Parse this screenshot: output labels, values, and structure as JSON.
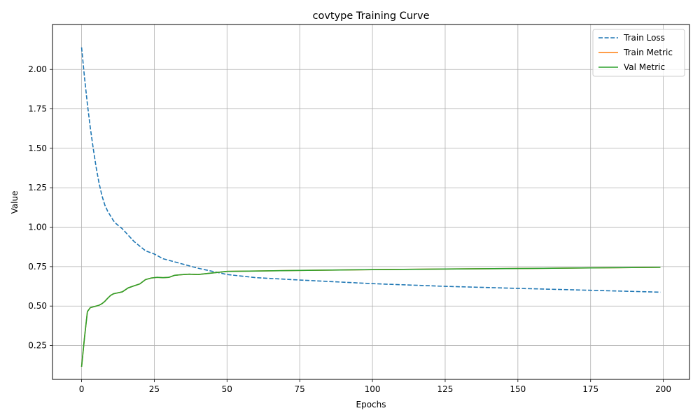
{
  "chart_data": {
    "type": "line",
    "title": "covtype Training Curve",
    "xlabel": "Epochs",
    "ylabel": "Value",
    "xlim": [
      -10,
      209
    ],
    "ylim": [
      0.035,
      2.285
    ],
    "xticks": [
      0,
      25,
      50,
      75,
      100,
      125,
      150,
      175,
      200
    ],
    "yticks": [
      0.25,
      0.5,
      0.75,
      1.0,
      1.25,
      1.5,
      1.75,
      2.0
    ],
    "ytick_labels": [
      "0.25",
      "0.50",
      "0.75",
      "1.00",
      "1.25",
      "1.50",
      "1.75",
      "2.00"
    ],
    "grid": true,
    "legend_position": "top-right",
    "series": [
      {
        "name": "Train Loss",
        "color": "#1f77b4",
        "style": "dashed",
        "x": [
          0,
          1,
          2,
          3,
          4,
          5,
          6,
          7,
          8,
          9,
          10,
          11,
          12,
          14,
          16,
          18,
          20,
          22,
          25,
          28,
          32,
          36,
          40,
          45,
          50,
          60,
          75,
          100,
          125,
          150,
          175,
          199
        ],
        "y": [
          2.14,
          1.95,
          1.78,
          1.63,
          1.5,
          1.38,
          1.28,
          1.2,
          1.14,
          1.1,
          1.07,
          1.04,
          1.02,
          0.99,
          0.95,
          0.91,
          0.88,
          0.85,
          0.83,
          0.8,
          0.78,
          0.76,
          0.74,
          0.72,
          0.7,
          0.68,
          0.665,
          0.642,
          0.625,
          0.612,
          0.6,
          0.588
        ]
      },
      {
        "name": "Train Metric",
        "color": "#ff7f0e",
        "style": "solid",
        "x": [
          0,
          1,
          2,
          3,
          4,
          5,
          6,
          7,
          8,
          9,
          10,
          11,
          12,
          14,
          16,
          18,
          20,
          22,
          24,
          26,
          28,
          30,
          32,
          35,
          37,
          40,
          45,
          50,
          60,
          75,
          100,
          125,
          150,
          175,
          199
        ],
        "y": [
          0.115,
          0.3,
          0.465,
          0.49,
          0.495,
          0.5,
          0.505,
          0.515,
          0.53,
          0.55,
          0.568,
          0.578,
          0.582,
          0.59,
          0.615,
          0.628,
          0.64,
          0.668,
          0.678,
          0.682,
          0.68,
          0.682,
          0.695,
          0.7,
          0.702,
          0.7,
          0.71,
          0.72,
          0.722,
          0.726,
          0.731,
          0.735,
          0.738,
          0.742,
          0.746
        ]
      },
      {
        "name": "Val Metric",
        "color": "#2ca02c",
        "style": "solid",
        "x": [
          0,
          1,
          2,
          3,
          4,
          5,
          6,
          7,
          8,
          9,
          10,
          11,
          12,
          14,
          16,
          18,
          20,
          22,
          24,
          26,
          28,
          30,
          32,
          35,
          37,
          40,
          45,
          50,
          60,
          75,
          100,
          125,
          150,
          175,
          199
        ],
        "y": [
          0.115,
          0.3,
          0.465,
          0.49,
          0.495,
          0.5,
          0.505,
          0.515,
          0.53,
          0.55,
          0.568,
          0.578,
          0.582,
          0.59,
          0.615,
          0.628,
          0.64,
          0.668,
          0.678,
          0.682,
          0.68,
          0.682,
          0.695,
          0.7,
          0.702,
          0.7,
          0.71,
          0.72,
          0.722,
          0.726,
          0.731,
          0.735,
          0.738,
          0.742,
          0.746
        ]
      }
    ]
  }
}
